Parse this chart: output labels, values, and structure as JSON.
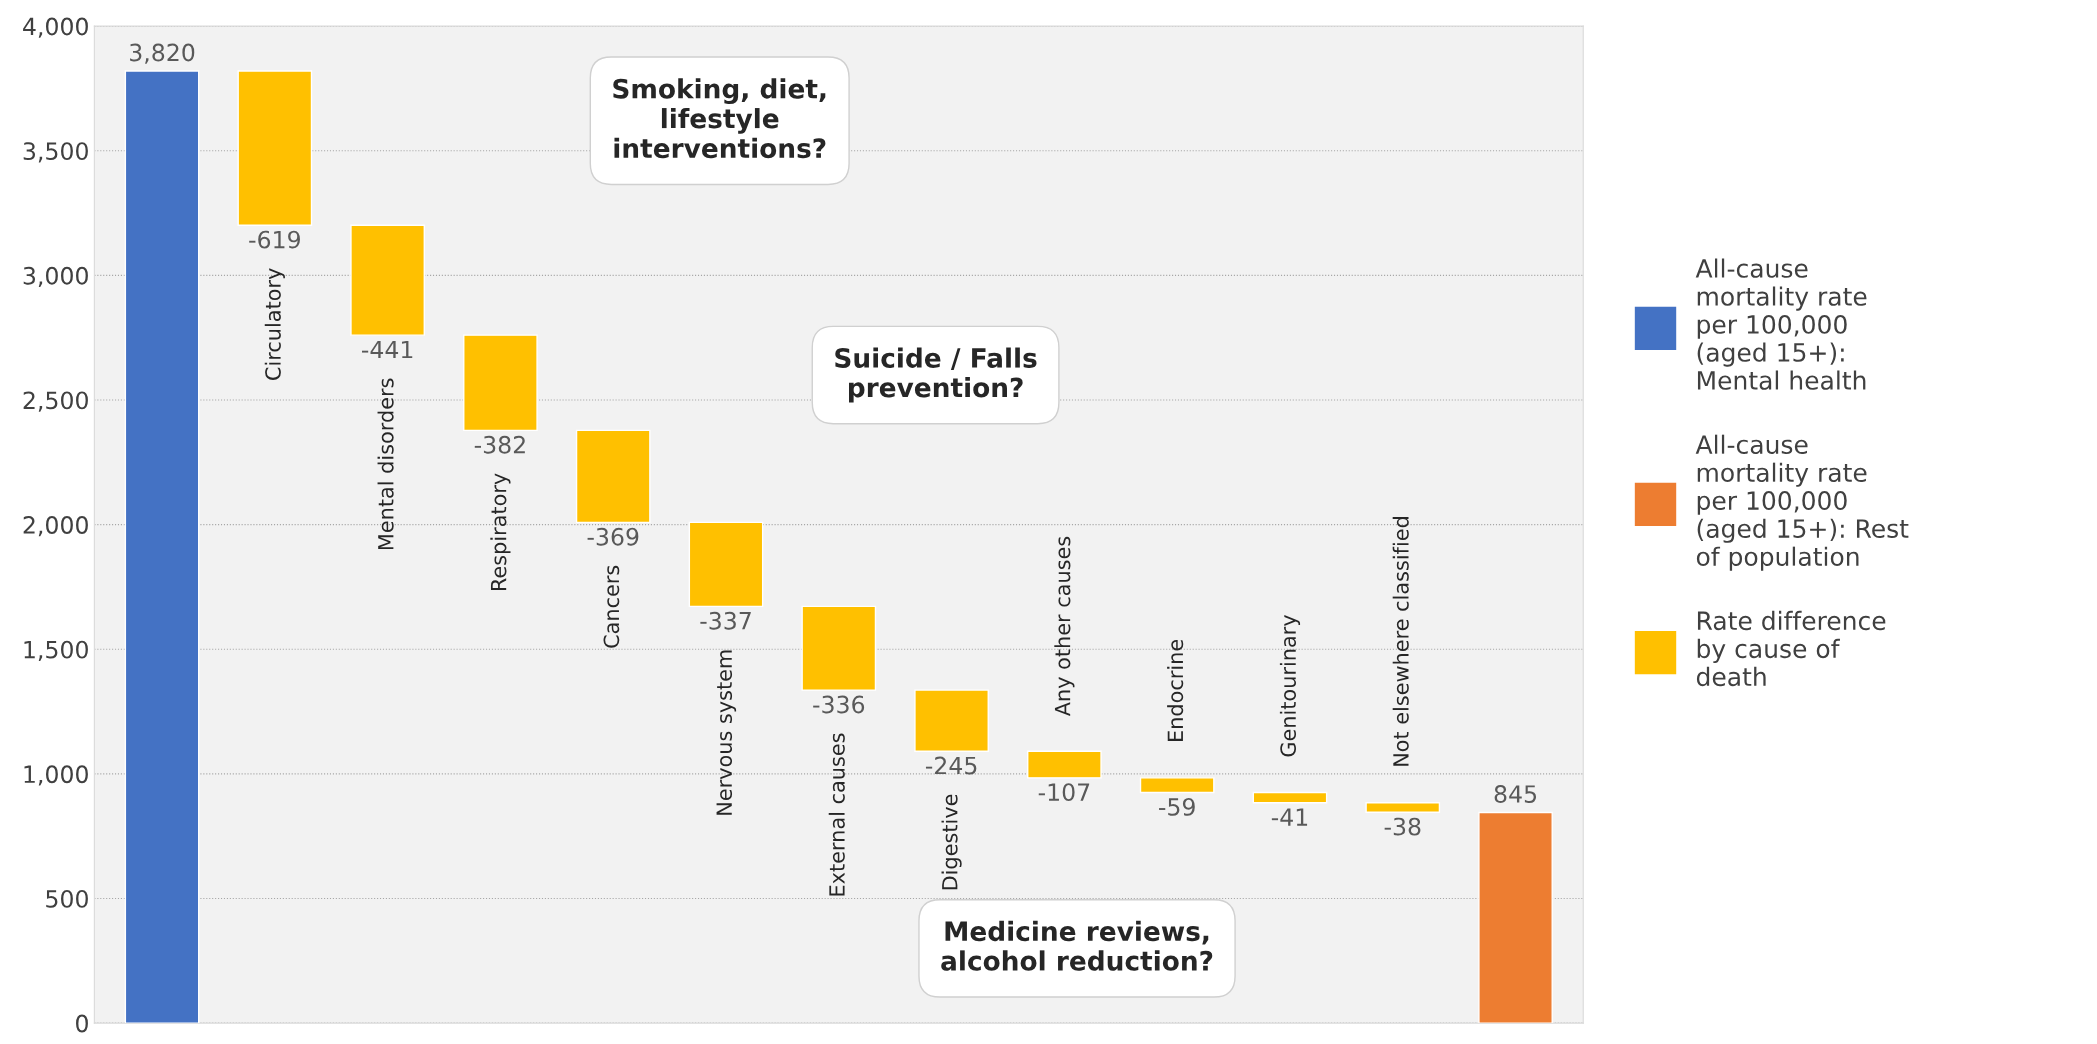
{
  "chart_data": {
    "type": "bar",
    "categories": [
      null,
      "Circulatory",
      "Mental disorders",
      "Respiratory",
      "Cancers",
      "Nervous system",
      "External causes",
      "Digestive",
      "Any other causes",
      "Endocrine",
      "Genitourinary",
      "Not elsewhere classified",
      null
    ],
    "series": [
      {
        "name": "All-cause mortality rate per 100,000 (aged 15+): Mental health",
        "color": "#4472c4",
        "values": [
          3820,
          null,
          null,
          null,
          null,
          null,
          null,
          null,
          null,
          null,
          null,
          null,
          null
        ],
        "base": [
          0,
          null,
          null,
          null,
          null,
          null,
          null,
          null,
          null,
          null,
          null,
          null,
          null
        ]
      },
      {
        "name": "All-cause mortality rate per 100,000 (aged 15+): Rest of population",
        "color": "#ed7d31",
        "values": [
          null,
          null,
          null,
          null,
          null,
          null,
          null,
          null,
          null,
          null,
          null,
          null,
          845
        ],
        "base": [
          null,
          null,
          null,
          null,
          null,
          null,
          null,
          null,
          null,
          null,
          null,
          null,
          0
        ]
      },
      {
        "name": "Rate difference by cause of death",
        "color": "#ffc000",
        "values": [
          null,
          -619,
          -441,
          -382,
          -369,
          -337,
          -336,
          -245,
          -107,
          -59,
          -41,
          -38,
          null
        ],
        "base": [
          null,
          3820,
          3201,
          2760,
          2378,
          2009,
          1672,
          1336,
          1091,
          984,
          925,
          884,
          null
        ]
      }
    ],
    "value_labels": [
      "3,820",
      "-619",
      "-441",
      "-382",
      "-369",
      "-337",
      "-336",
      "-245",
      "-107",
      "-59",
      "-41",
      "-38",
      "845"
    ],
    "ylim": [
      0,
      4000
    ],
    "yticks": [
      0,
      500,
      {
        "value": 1000,
        "label": "1,000"
      },
      {
        "value": 1500,
        "label": "1,500"
      },
      {
        "value": 2000,
        "label": "2,000"
      },
      {
        "value": 2500,
        "label": "2,500"
      },
      {
        "value": 3000,
        "label": "3,000"
      },
      {
        "value": 3500,
        "label": "3,500"
      },
      {
        "value": 4000,
        "label": "4,000"
      }
    ],
    "grid": "y",
    "legend": "right",
    "tick_labels": "y",
    "annotations": [
      "Smoking, diet, lifestyle interventions?",
      "Suicide / Falls prevention?",
      "Medicine reviews, alcohol reduction?"
    ]
  }
}
